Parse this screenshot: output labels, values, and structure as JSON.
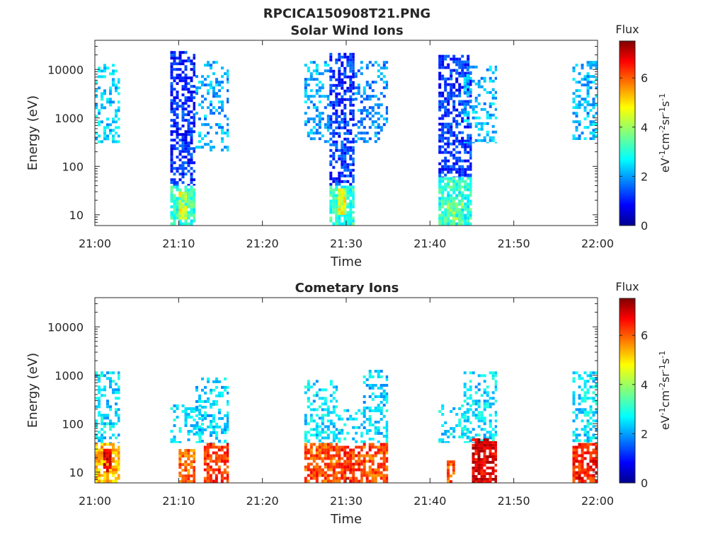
{
  "figure_title": "RPCICA150908T21.PNG",
  "colorbar": {
    "title": "Flux",
    "label": "eV",
    "label_parts": [
      "eV",
      "-1",
      "cm",
      "-2",
      "sr",
      "-1",
      "s",
      "-1"
    ],
    "range": [
      0,
      7.5
    ],
    "ticks": [
      "0",
      "2",
      "4",
      "6"
    ],
    "colormap": "jet"
  },
  "chart_data": [
    {
      "type": "heatmap",
      "title": "Solar Wind Ions",
      "xlabel": "Time",
      "ylabel": "Energy (eV)",
      "x_range": [
        "21:00",
        "22:00"
      ],
      "x_ticks": [
        "21:00",
        "21:10",
        "21:20",
        "21:30",
        "21:40",
        "21:50",
        "22:00"
      ],
      "y_scale": "log",
      "y_range": [
        6,
        40000
      ],
      "y_ticks": [
        "10",
        "100",
        "1000",
        "10000"
      ],
      "z_label": "Flux",
      "z_range": [
        0,
        7.5
      ],
      "series": [
        {
          "start": "21:00",
          "end": "21:03",
          "energy_min": 300,
          "energy_max": 13000,
          "flux": 2.5,
          "density": 0.35
        },
        {
          "start": "21:09",
          "end": "21:12",
          "energy_min": 40,
          "energy_max": 24000,
          "flux": 1.2,
          "density": 0.6
        },
        {
          "start": "21:09",
          "end": "21:12",
          "energy_min": 6,
          "energy_max": 40,
          "flux": 3.2,
          "density": 0.85
        },
        {
          "start": "21:10",
          "end": "21:11",
          "energy_min": 8,
          "energy_max": 30,
          "flux": 4.5,
          "density": 0.9
        },
        {
          "start": "21:12",
          "end": "21:16",
          "energy_min": 200,
          "energy_max": 15000,
          "flux": 2.2,
          "density": 0.3
        },
        {
          "start": "21:25",
          "end": "21:28",
          "energy_min": 300,
          "energy_max": 15000,
          "flux": 2.2,
          "density": 0.35
        },
        {
          "start": "21:28",
          "end": "21:31",
          "energy_min": 40,
          "energy_max": 22000,
          "flux": 1.3,
          "density": 0.6
        },
        {
          "start": "21:28",
          "end": "21:31",
          "energy_min": 6,
          "energy_max": 40,
          "flux": 3.2,
          "density": 0.85
        },
        {
          "start": "21:29",
          "end": "21:30",
          "energy_min": 10,
          "energy_max": 35,
          "flux": 4.6,
          "density": 0.9
        },
        {
          "start": "21:31",
          "end": "21:35",
          "energy_min": 300,
          "energy_max": 15000,
          "flux": 2.0,
          "density": 0.35
        },
        {
          "start": "21:41",
          "end": "21:45",
          "energy_min": 60,
          "energy_max": 20000,
          "flux": 1.3,
          "density": 0.6
        },
        {
          "start": "21:41",
          "end": "21:45",
          "energy_min": 6,
          "energy_max": 60,
          "flux": 3.1,
          "density": 0.85
        },
        {
          "start": "21:42",
          "end": "21:44",
          "energy_min": 6,
          "energy_max": 20,
          "flux": 3.8,
          "density": 0.6
        },
        {
          "start": "21:44",
          "end": "21:48",
          "energy_min": 300,
          "energy_max": 12000,
          "flux": 2.3,
          "density": 0.3
        },
        {
          "start": "21:57",
          "end": "22:00",
          "energy_min": 350,
          "energy_max": 15000,
          "flux": 2.3,
          "density": 0.45
        }
      ]
    },
    {
      "type": "heatmap",
      "title": "Cometary Ions",
      "xlabel": "Time",
      "ylabel": "Energy (eV)",
      "x_range": [
        "21:00",
        "22:00"
      ],
      "x_ticks": [
        "21:00",
        "21:10",
        "21:20",
        "21:30",
        "21:40",
        "21:50",
        "22:00"
      ],
      "y_scale": "log",
      "y_range": [
        6,
        40000
      ],
      "y_ticks": [
        "10",
        "100",
        "1000",
        "10000"
      ],
      "z_label": "Flux",
      "z_range": [
        0,
        7.5
      ],
      "series": [
        {
          "start": "21:00",
          "end": "21:03",
          "energy_min": 40,
          "energy_max": 1200,
          "flux": 2.6,
          "density": 0.45
        },
        {
          "start": "21:00",
          "end": "21:03",
          "energy_min": 6,
          "energy_max": 40,
          "flux": 5.2,
          "density": 0.75
        },
        {
          "start": "21:01",
          "end": "21:02",
          "energy_min": 10,
          "energy_max": 30,
          "flux": 6.8,
          "density": 0.9
        },
        {
          "start": "21:09",
          "end": "21:13",
          "energy_min": 40,
          "energy_max": 250,
          "flux": 2.6,
          "density": 0.3
        },
        {
          "start": "21:10",
          "end": "21:12",
          "energy_min": 6,
          "energy_max": 30,
          "flux": 5.8,
          "density": 0.75
        },
        {
          "start": "21:12",
          "end": "21:16",
          "energy_min": 40,
          "energy_max": 900,
          "flux": 2.5,
          "density": 0.4
        },
        {
          "start": "21:13",
          "end": "21:16",
          "energy_min": 6,
          "energy_max": 40,
          "flux": 6.2,
          "density": 0.7
        },
        {
          "start": "21:25",
          "end": "21:29",
          "energy_min": 40,
          "energy_max": 800,
          "flux": 2.6,
          "density": 0.4
        },
        {
          "start": "21:25",
          "end": "21:29",
          "energy_min": 6,
          "energy_max": 40,
          "flux": 6.0,
          "density": 0.75
        },
        {
          "start": "21:29",
          "end": "21:32",
          "energy_min": 40,
          "energy_max": 200,
          "flux": 2.6,
          "density": 0.3
        },
        {
          "start": "21:29",
          "end": "21:32",
          "energy_min": 6,
          "energy_max": 35,
          "flux": 6.2,
          "density": 0.75
        },
        {
          "start": "21:32",
          "end": "21:35",
          "energy_min": 40,
          "energy_max": 1300,
          "flux": 2.5,
          "density": 0.4
        },
        {
          "start": "21:32",
          "end": "21:35",
          "energy_min": 6,
          "energy_max": 40,
          "flux": 6.0,
          "density": 0.7
        },
        {
          "start": "21:41",
          "end": "21:45",
          "energy_min": 40,
          "energy_max": 250,
          "flux": 2.6,
          "density": 0.3
        },
        {
          "start": "21:42",
          "end": "21:43",
          "energy_min": 6,
          "energy_max": 20,
          "flux": 6.0,
          "density": 0.7
        },
        {
          "start": "21:44",
          "end": "21:48",
          "energy_min": 40,
          "energy_max": 1200,
          "flux": 2.6,
          "density": 0.45
        },
        {
          "start": "21:45",
          "end": "21:48",
          "energy_min": 6,
          "energy_max": 50,
          "flux": 6.8,
          "density": 0.8
        },
        {
          "start": "21:57",
          "end": "22:00",
          "energy_min": 40,
          "energy_max": 1200,
          "flux": 2.6,
          "density": 0.45
        },
        {
          "start": "21:57",
          "end": "22:00",
          "energy_min": 6,
          "energy_max": 40,
          "flux": 6.4,
          "density": 0.8
        }
      ]
    }
  ]
}
